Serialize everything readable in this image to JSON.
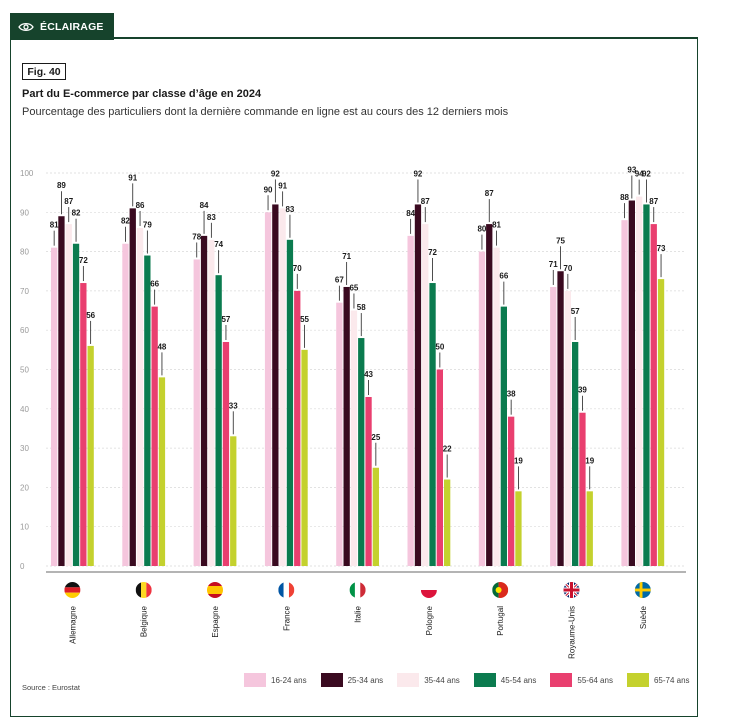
{
  "header": {
    "tag_label": "ÉCLAIRAGE",
    "tag_icon": "eye-icon",
    "fig_label": "Fig. 40",
    "title": "Part du E-commerce par classe d’âge en 2024",
    "subtitle": "Pourcentage des particuliers dont la dernière commande en ligne est au cours des 12 derniers mois",
    "source": "Source : Eurostat"
  },
  "colors": {
    "accent": "#16432c",
    "series": [
      "#f5c6dd",
      "#3a0a20",
      "#fbe9ec",
      "#0b7b4f",
      "#e93f6f",
      "#c4d12e"
    ]
  },
  "chart_data": {
    "type": "bar",
    "categories": [
      "Allemagne",
      "Belgique",
      "Espagne",
      "France",
      "Italie",
      "Pologne",
      "Portugal",
      "Royaume-Unis",
      "Suède"
    ],
    "category_icons": [
      "flag-germany-icon",
      "flag-belgium-icon",
      "flag-spain-icon",
      "flag-france-icon",
      "flag-italy-icon",
      "flag-poland-icon",
      "flag-portugal-icon",
      "flag-uk-icon",
      "flag-sweden-icon"
    ],
    "series": [
      {
        "name": "16-24 ans",
        "values": [
          81,
          82,
          78,
          90,
          67,
          84,
          80,
          71,
          88
        ]
      },
      {
        "name": "25-34 ans",
        "values": [
          89,
          91,
          84,
          92,
          71,
          92,
          87,
          75,
          93
        ]
      },
      {
        "name": "35-44 ans",
        "values": [
          87,
          86,
          83,
          91,
          65,
          87,
          81,
          70,
          94
        ]
      },
      {
        "name": "45-54 ans",
        "values": [
          82,
          79,
          74,
          83,
          58,
          72,
          66,
          57,
          92
        ]
      },
      {
        "name": "55-64 ans",
        "values": [
          72,
          66,
          57,
          70,
          43,
          50,
          38,
          39,
          87
        ]
      },
      {
        "name": "65-74 ans",
        "values": [
          56,
          48,
          33,
          55,
          25,
          22,
          19,
          19,
          73
        ]
      }
    ],
    "y_ticks": [
      0,
      10,
      20,
      30,
      40,
      50,
      60,
      70,
      80,
      90,
      100
    ],
    "ylim": [
      0,
      100
    ],
    "grid": true,
    "legend": "bottom-right"
  }
}
